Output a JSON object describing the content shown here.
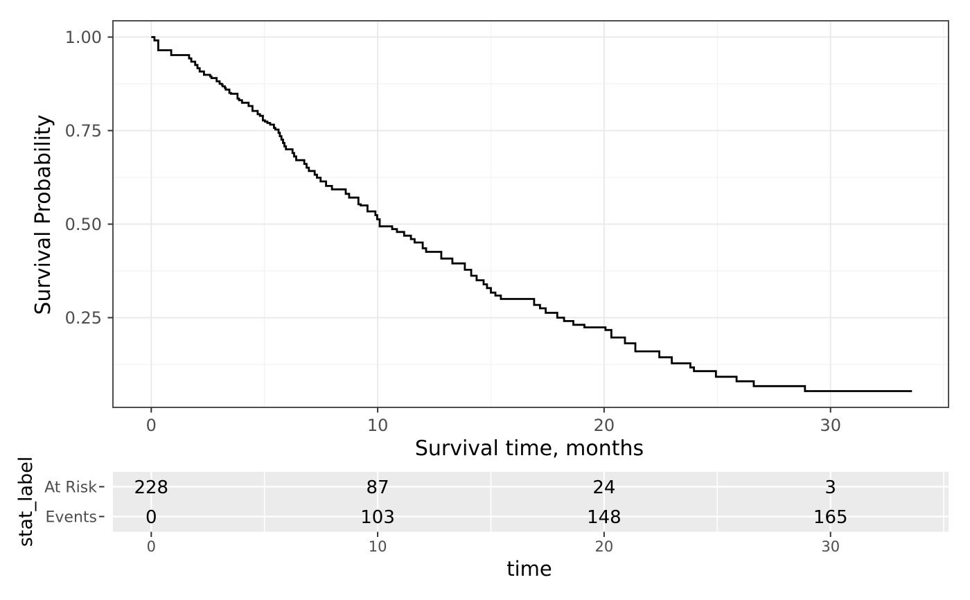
{
  "colors": {
    "background": "#ffffff",
    "panel_border": "#4d4d4d",
    "grid_major": "#e8e8e8",
    "grid_minor": "#f2f2f2",
    "curve": "#000000",
    "tick_mark": "#333333",
    "tick_label": "#4d4d4d",
    "table_panel_bg": "#ebebeb",
    "table_grid": "#ffffff",
    "title_color": "#000000"
  },
  "chart_data": [
    {
      "type": "line",
      "subtype": "kaplan-meier-step",
      "title": "",
      "xlabel": "Survival time, months",
      "ylabel": "Survival Probability",
      "xlim": [
        -1.69,
        35.2
      ],
      "ylim": [
        0.01,
        1.043
      ],
      "grid": "major+minor",
      "legend": "none",
      "x_ticks": {
        "major": [
          0,
          10,
          20,
          30
        ],
        "minor": [
          5,
          15,
          25,
          35
        ],
        "labels": [
          "0",
          "10",
          "20",
          "30"
        ]
      },
      "y_ticks": {
        "major": [
          1.0,
          0.75,
          0.5,
          0.25
        ],
        "minor": [
          0.875,
          0.625,
          0.375,
          0.125
        ],
        "labels": [
          "1.00",
          "0.75",
          "0.50",
          "0.25"
        ]
      },
      "steps": [
        [
          0,
          1.0
        ],
        [
          0.14,
          0.9912
        ],
        [
          0.31,
          0.9649
        ],
        [
          0.88,
          0.9518
        ],
        [
          1.67,
          0.943
        ],
        [
          1.77,
          0.9342
        ],
        [
          1.94,
          0.9254
        ],
        [
          2.04,
          0.9167
        ],
        [
          2.14,
          0.9079
        ],
        [
          2.33,
          0.8991
        ],
        [
          2.6,
          0.8947
        ],
        [
          2.66,
          0.8903
        ],
        [
          2.89,
          0.8816
        ],
        [
          3.02,
          0.875
        ],
        [
          3.12,
          0.8728
        ],
        [
          3.15,
          0.8684
        ],
        [
          3.25,
          0.864
        ],
        [
          3.29,
          0.8596
        ],
        [
          3.45,
          0.8508
        ],
        [
          3.52,
          0.8486
        ],
        [
          3.81,
          0.8355
        ],
        [
          3.88,
          0.8311
        ],
        [
          4.01,
          0.8245
        ],
        [
          4.3,
          0.8157
        ],
        [
          4.47,
          0.8026
        ],
        [
          4.7,
          0.7939
        ],
        [
          4.8,
          0.7895
        ],
        [
          4.93,
          0.7773
        ],
        [
          5.02,
          0.774
        ],
        [
          5.13,
          0.7704
        ],
        [
          5.25,
          0.766
        ],
        [
          5.42,
          0.7572
        ],
        [
          5.48,
          0.7528
        ],
        [
          5.62,
          0.744
        ],
        [
          5.68,
          0.735
        ],
        [
          5.75,
          0.726
        ],
        [
          5.82,
          0.717
        ],
        [
          5.88,
          0.708
        ],
        [
          5.95,
          0.7
        ],
        [
          6.24,
          0.69
        ],
        [
          6.31,
          0.681
        ],
        [
          6.4,
          0.671
        ],
        [
          6.76,
          0.661
        ],
        [
          6.86,
          0.651
        ],
        [
          6.96,
          0.642
        ],
        [
          7.22,
          0.632
        ],
        [
          7.32,
          0.624
        ],
        [
          7.48,
          0.614
        ],
        [
          7.72,
          0.602
        ],
        [
          7.98,
          0.593
        ],
        [
          8.59,
          0.581
        ],
        [
          8.74,
          0.571
        ],
        [
          9.15,
          0.553
        ],
        [
          9.25,
          0.55
        ],
        [
          9.55,
          0.534
        ],
        [
          9.9,
          0.524
        ],
        [
          9.98,
          0.513
        ],
        [
          10.09,
          0.494
        ],
        [
          10.64,
          0.4867
        ],
        [
          10.85,
          0.479
        ],
        [
          11.17,
          0.469
        ],
        [
          11.47,
          0.46
        ],
        [
          11.63,
          0.451
        ],
        [
          11.99,
          0.4355
        ],
        [
          12.14,
          0.426
        ],
        [
          12.81,
          0.408
        ],
        [
          13.3,
          0.395
        ],
        [
          13.85,
          0.378
        ],
        [
          14.13,
          0.362
        ],
        [
          14.37,
          0.35
        ],
        [
          14.68,
          0.339
        ],
        [
          14.83,
          0.329
        ],
        [
          15.0,
          0.317
        ],
        [
          15.2,
          0.309
        ],
        [
          15.44,
          0.3
        ],
        [
          16.91,
          0.284
        ],
        [
          17.17,
          0.275
        ],
        [
          17.42,
          0.263
        ],
        [
          17.93,
          0.25
        ],
        [
          18.23,
          0.241
        ],
        [
          18.64,
          0.231
        ],
        [
          19.13,
          0.224
        ],
        [
          20.06,
          0.217
        ],
        [
          20.32,
          0.197
        ],
        [
          20.92,
          0.1815
        ],
        [
          21.38,
          0.16
        ],
        [
          22.44,
          0.144
        ],
        [
          22.99,
          0.128
        ],
        [
          23.81,
          0.117
        ],
        [
          23.97,
          0.107
        ],
        [
          24.94,
          0.092
        ],
        [
          25.85,
          0.08
        ],
        [
          26.61,
          0.067
        ],
        [
          28.87,
          0.0537
        ],
        [
          33.6,
          0.0537
        ]
      ]
    },
    {
      "type": "table",
      "title": "",
      "xlabel": "time",
      "ylabel": "stat_label",
      "x_ticks": {
        "major": [
          0,
          10,
          20,
          30
        ],
        "minor": [
          5,
          15,
          25,
          35
        ],
        "labels": [
          "0",
          "10",
          "20",
          "30"
        ]
      },
      "columns": [
        0,
        10,
        20,
        30
      ],
      "rows": [
        {
          "label": "At Risk",
          "values": [
            "228",
            "87",
            "24",
            "3"
          ]
        },
        {
          "label": "Events",
          "values": [
            "0",
            "103",
            "148",
            "165"
          ]
        }
      ]
    }
  ]
}
